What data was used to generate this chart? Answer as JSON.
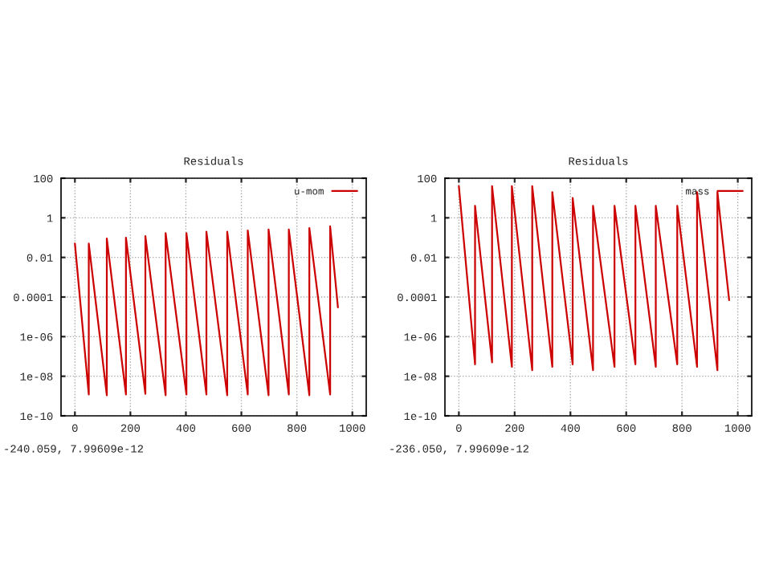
{
  "chart_data": [
    {
      "type": "line",
      "title": "Residuals",
      "log": "y",
      "grid": true,
      "legend": "top right",
      "xlim": [
        -50,
        1050
      ],
      "xticks": [
        0,
        200,
        400,
        600,
        800,
        1000
      ],
      "ylim": [
        1e-10,
        100
      ],
      "yticks": [
        1e-10,
        1e-08,
        1e-06,
        0.0001,
        0.01,
        1,
        100
      ],
      "annotations": [
        "-240.059, 7.99609e-12"
      ],
      "series": [
        {
          "name": "u-mom",
          "color": "#cc0000",
          "x": [
            0,
            50,
            50,
            115,
            115,
            184,
            184,
            254,
            254,
            327,
            327,
            402,
            402,
            474,
            474,
            549,
            549,
            623,
            623,
            698,
            698,
            771,
            771,
            845,
            845,
            920,
            920,
            948
          ],
          "values": [
            0.05,
            1.2e-09,
            0.05,
            1.1e-09,
            0.09,
            1.2e-09,
            0.1,
            1.3e-09,
            0.12,
            1.1e-09,
            0.17,
            1.2e-09,
            0.17,
            1.2e-09,
            0.2,
            1.1e-09,
            0.2,
            1.2e-09,
            0.23,
            1.1e-09,
            0.26,
            1.2e-09,
            0.26,
            1.1e-09,
            0.3,
            1.2e-09,
            0.37,
            3e-05
          ]
        }
      ]
    },
    {
      "type": "line",
      "title": "Residuals",
      "log": "y",
      "grid": true,
      "legend": "top right",
      "xlim": [
        -50,
        1050
      ],
      "xticks": [
        0,
        200,
        400,
        600,
        800,
        1000
      ],
      "ylim": [
        1e-10,
        100
      ],
      "yticks": [
        1e-10,
        1e-08,
        1e-06,
        0.0001,
        0.01,
        1,
        100
      ],
      "annotations": [
        "-236.050, 7.99609e-12"
      ],
      "series": [
        {
          "name": "mass",
          "color": "#cc0000",
          "x": [
            0,
            58,
            58,
            119,
            119,
            190,
            190,
            263,
            263,
            335,
            335,
            408,
            408,
            481,
            481,
            558,
            558,
            633,
            633,
            706,
            706,
            783,
            783,
            854,
            854,
            927,
            927,
            969
          ],
          "values": [
            40,
            4e-08,
            4,
            5e-08,
            40,
            3e-08,
            40,
            2e-08,
            40,
            3e-08,
            20,
            4e-08,
            10,
            2e-08,
            4,
            3e-08,
            4,
            4e-08,
            4,
            3e-08,
            4,
            4e-08,
            4,
            3e-08,
            20,
            2e-08,
            20,
            7e-05
          ]
        }
      ]
    }
  ]
}
